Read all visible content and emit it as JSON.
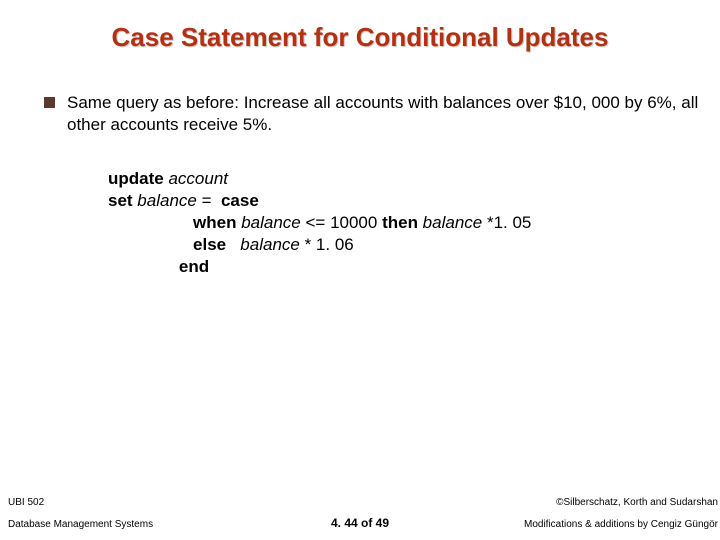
{
  "title": "Case Statement for Conditional Updates",
  "bullet": {
    "text": "Same query as before: Increase all accounts with balances over $10, 000 by 6%, all other accounts receive 5%."
  },
  "code": {
    "l1_kw": "update ",
    "l1_id": "account",
    "l2_kw": "set ",
    "l2_id": "balance ",
    "l2_op": "=  ",
    "l2_kw2": "case",
    "l3_indent": "                  ",
    "l3_kw1": "when ",
    "l3_id1": "balance ",
    "l3_op1": "<= 10000 ",
    "l3_kw2": "then ",
    "l3_id2": "balance ",
    "l3_op2": "*1. 05",
    "l4_indent": "                  ",
    "l4_kw": "else   ",
    "l4_id": "balance ",
    "l4_op": "* 1. 06",
    "l5_indent": "               ",
    "l5_kw": "end"
  },
  "footer": {
    "left_top": "UBI 502",
    "left_bottom": "Database Management Systems",
    "right_top": "©Silberschatz, Korth and Sudarshan",
    "right_bottom": "Modifications & additions by Cengiz Güngör",
    "center": "4. 44 of 49"
  },
  "colors": {
    "title": "#b23014",
    "bullet_square": "#5b3a2e",
    "background": "#ffffff",
    "text": "#000000"
  }
}
